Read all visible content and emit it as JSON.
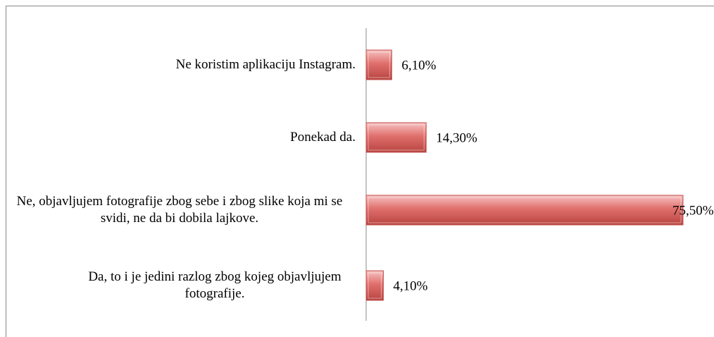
{
  "chart_data": {
    "type": "bar",
    "orientation": "horizontal",
    "categories": [
      "Ne koristim aplikaciju Instagram.",
      "Ponekad da.",
      "Ne, objavljujem fotografije zbog sebe i zbog slike koja mi se svidi, ne da bi dobila lajkove.",
      "Da, to i je jedini razlog zbog kojeg objavljujem fotografije."
    ],
    "values": [
      6.1,
      14.3,
      75.5,
      4.1
    ],
    "value_labels": [
      "6,10%",
      "14,30%",
      "75,50%",
      "4,10%"
    ],
    "color": "#c0504d"
  }
}
